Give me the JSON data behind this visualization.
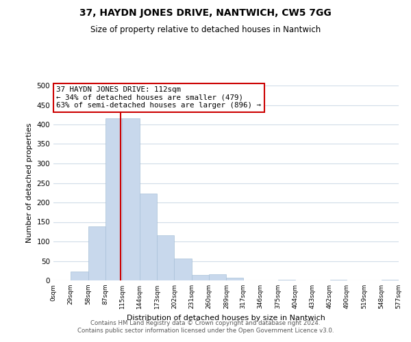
{
  "title": "37, HAYDN JONES DRIVE, NANTWICH, CW5 7GG",
  "subtitle": "Size of property relative to detached houses in Nantwich",
  "xlabel": "Distribution of detached houses by size in Nantwich",
  "ylabel": "Number of detached properties",
  "bar_color": "#c8d8ec",
  "bar_edge_color": "#a8c0d8",
  "bin_edges": [
    0,
    29,
    58,
    87,
    115,
    144,
    173,
    202,
    231,
    260,
    289,
    317,
    346,
    375,
    404,
    433,
    462,
    490,
    519,
    548,
    577
  ],
  "bin_labels": [
    "0sqm",
    "29sqm",
    "58sqm",
    "87sqm",
    "115sqm",
    "144sqm",
    "173sqm",
    "202sqm",
    "231sqm",
    "260sqm",
    "289sqm",
    "317sqm",
    "346sqm",
    "375sqm",
    "404sqm",
    "433sqm",
    "462sqm",
    "490sqm",
    "519sqm",
    "548sqm",
    "577sqm"
  ],
  "counts": [
    0,
    22,
    138,
    415,
    415,
    222,
    115,
    57,
    14,
    15,
    7,
    0,
    0,
    1,
    0,
    0,
    1,
    0,
    0,
    1
  ],
  "ylim": [
    0,
    500
  ],
  "yticks": [
    0,
    50,
    100,
    150,
    200,
    250,
    300,
    350,
    400,
    450,
    500
  ],
  "property_value": 112,
  "annotation_title": "37 HAYDN JONES DRIVE: 112sqm",
  "annotation_line1": "← 34% of detached houses are smaller (479)",
  "annotation_line2": "63% of semi-detached houses are larger (896) →",
  "vline_color": "#cc0000",
  "annotation_box_edge": "#cc0000",
  "footer_line1": "Contains HM Land Registry data © Crown copyright and database right 2024.",
  "footer_line2": "Contains public sector information licensed under the Open Government Licence v3.0.",
  "background_color": "#ffffff",
  "grid_color": "#d0dce8"
}
